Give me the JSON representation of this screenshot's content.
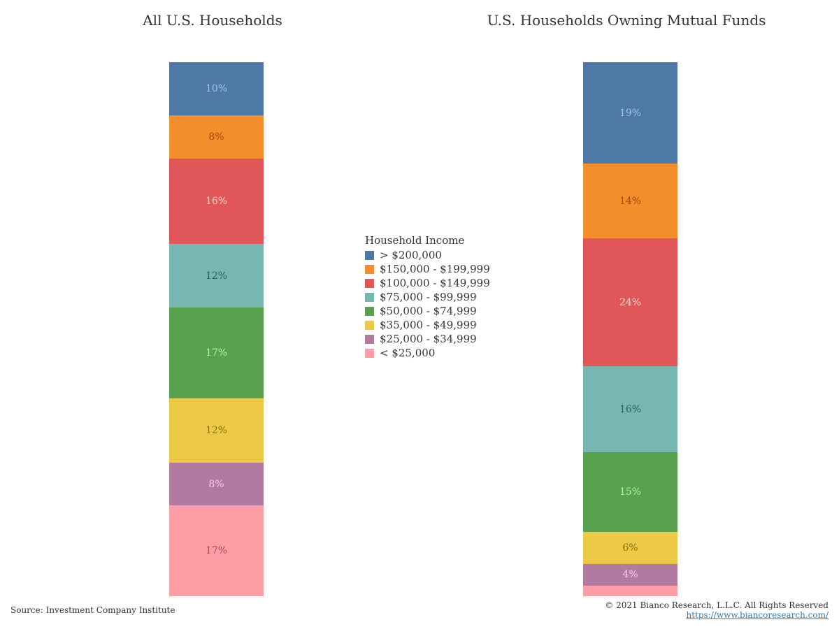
{
  "chart_data": [
    {
      "type": "bar",
      "stacked": true,
      "title": "All U.S. Households",
      "unit": "%",
      "segments": [
        {
          "category": "> $200,000",
          "value": 10,
          "label": "10%"
        },
        {
          "category": "$150,000 - $199,999",
          "value": 8,
          "label": "8%"
        },
        {
          "category": "$100,000 - $149,999",
          "value": 16,
          "label": "16%"
        },
        {
          "category": "$75,000 - $99,999",
          "value": 12,
          "label": "12%"
        },
        {
          "category": "$50,000 - $74,999",
          "value": 17,
          "label": "17%"
        },
        {
          "category": "$35,000 - $49,999",
          "value": 12,
          "label": "12%"
        },
        {
          "category": "$25,000 - $34,999",
          "value": 8,
          "label": "8%"
        },
        {
          "category": "< $25,000",
          "value": 17,
          "label": "17%"
        }
      ]
    },
    {
      "type": "bar",
      "stacked": true,
      "title": "U.S. Households Owning Mutual Funds",
      "unit": "%",
      "segments": [
        {
          "category": "> $200,000",
          "value": 19,
          "label": "19%"
        },
        {
          "category": "$150,000 - $199,999",
          "value": 14,
          "label": "14%"
        },
        {
          "category": "$100,000 - $149,999",
          "value": 24,
          "label": "24%"
        },
        {
          "category": "$75,000 - $99,999",
          "value": 16,
          "label": "16%"
        },
        {
          "category": "$50,000 - $74,999",
          "value": 15,
          "label": "15%"
        },
        {
          "category": "$35,000 - $49,999",
          "value": 6,
          "label": "6%"
        },
        {
          "category": "$25,000 - $34,999",
          "value": 4,
          "label": "4%"
        },
        {
          "category": "< $25,000",
          "value": 2,
          "label": ""
        }
      ]
    }
  ],
  "legend": {
    "title": "Household Income",
    "placement": "center",
    "items": [
      {
        "label": "> $200,000",
        "color": "#4e79a7",
        "text_color": "#9ec5f5"
      },
      {
        "label": "$150,000 - $199,999",
        "color": "#f28e2b",
        "text_color": "#9e4a0a"
      },
      {
        "label": "$100,000 - $149,999",
        "color": "#e15759",
        "text_color": "#fcd3d3"
      },
      {
        "label": "$75,000 - $99,999",
        "color": "#76b7b2",
        "text_color": "#2f5c58"
      },
      {
        "label": "$50,000 - $74,999",
        "color": "#59a14f",
        "text_color": "#b7f0a8"
      },
      {
        "label": "$35,000 - $49,999",
        "color": "#edc948",
        "text_color": "#8a6c0e"
      },
      {
        "label": "$25,000 - $34,999",
        "color": "#b07aa1",
        "text_color": "#f2cdeb"
      },
      {
        "label": "< $25,000",
        "color": "#ff9da7",
        "text_color": "#a14f58"
      }
    ]
  },
  "footer": {
    "source": "Source: Investment Company Institute",
    "copyright": "© 2021 Bianco Research, L.L.C. All Rights Reserved",
    "url": "https://www.biancoresearch.com/"
  }
}
